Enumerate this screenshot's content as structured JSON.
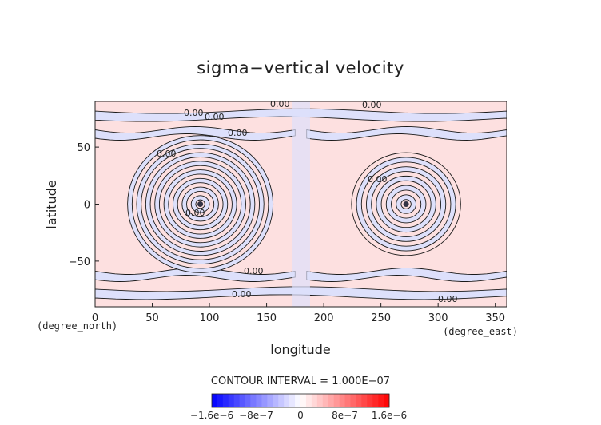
{
  "chart_data": {
    "type": "contour",
    "title": "sigma−vertical velocity",
    "xlabel": "longitude",
    "ylabel": "latitude",
    "x_unit": "(degree_east)",
    "y_unit": "(degree_north)",
    "xlim": [
      0,
      360
    ],
    "ylim": [
      -90,
      90
    ],
    "xticks": [
      0,
      50,
      100,
      150,
      200,
      250,
      300,
      350
    ],
    "yticks": [
      -50,
      0,
      50
    ],
    "contour_interval_text": "CONTOUR INTERVAL = 1.000E−07",
    "contour_interval": 1e-07,
    "zero_contour_label": "0.00",
    "features": [
      {
        "name": "western-ring-system",
        "center": [
          92,
          0
        ],
        "rings": 16,
        "outer_radius_deg": 60
      },
      {
        "name": "eastern-ring-system",
        "center": [
          272,
          0
        ],
        "rings": 11,
        "outer_radius_deg": 45
      }
    ],
    "colorbar": {
      "range": [
        -1.6e-06,
        1.6e-06
      ],
      "ticks": [
        {
          "label": "−1.6e−6",
          "value": -1.6e-06
        },
        {
          "label": "−8e−7",
          "value": -8e-07
        },
        {
          "label": "0",
          "value": 0
        },
        {
          "label": "8e−7",
          "value": 8e-07
        },
        {
          "label": "1.6e−6",
          "value": 1.6e-06
        }
      ],
      "negative_color": "#0000ff",
      "positive_color": "#ff0000",
      "neutral_color": "#ffffff"
    },
    "fill_colors": {
      "positive": "#fde0e0",
      "negative": "#dde0fb"
    }
  }
}
